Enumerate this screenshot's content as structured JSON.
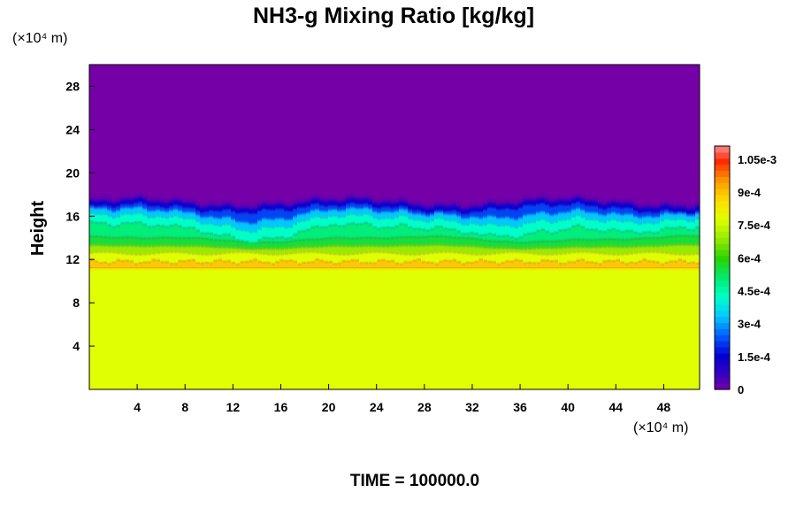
{
  "chart_data": {
    "type": "heatmap",
    "title": "NH3-g Mixing Ratio [kg/kg]",
    "ylabel": "Height",
    "y_unit": "(×10⁴ m)",
    "x_unit": "(×10⁴ m)",
    "x_ticks": [
      "4",
      "8",
      "12",
      "16",
      "20",
      "24",
      "28",
      "32",
      "36",
      "40",
      "44",
      "48"
    ],
    "y_ticks": [
      "4",
      "8",
      "12",
      "16",
      "20",
      "24",
      "28"
    ],
    "xlim": [
      0,
      51
    ],
    "ylim": [
      0,
      30
    ],
    "colorbar": {
      "range": [
        0,
        0.00111
      ],
      "labels": [
        "0",
        "1.5e-4",
        "3e-4",
        "4.5e-4",
        "6e-4",
        "7.5e-4",
        "9e-4",
        "1.05e-3"
      ],
      "label_values": [
        0,
        0.00015,
        0.0003,
        0.00045,
        0.0006,
        0.00075,
        0.0009,
        0.00105
      ]
    },
    "colors": {
      "top_region": "#7600a8",
      "bottom_region": "#e0ff00",
      "orange_band": "#ffbc00",
      "green_band": "#1ee878"
    },
    "footer": "TIME = 100000.0"
  }
}
